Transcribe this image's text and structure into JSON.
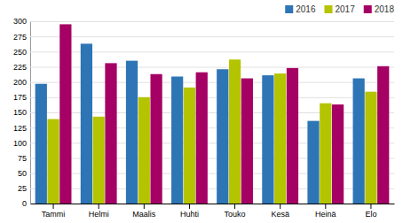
{
  "chart_data": {
    "type": "bar",
    "categories": [
      "Tammi",
      "Helmi",
      "Maalis",
      "Huhti",
      "Touko",
      "Kesä",
      "Heinä",
      "Elo"
    ],
    "series": [
      {
        "name": "2016",
        "color": "#2e75b6",
        "values": [
          197,
          263,
          235,
          209,
          221,
          211,
          136,
          206
        ]
      },
      {
        "name": "2017",
        "color": "#b5c400",
        "values": [
          139,
          143,
          175,
          191,
          237,
          214,
          165,
          184
        ]
      },
      {
        "name": "2018",
        "color": "#a50064",
        "values": [
          295,
          231,
          213,
          216,
          206,
          223,
          163,
          226
        ]
      }
    ],
    "ylim": [
      0,
      300
    ],
    "yticks": [
      0,
      25,
      50,
      75,
      100,
      125,
      150,
      175,
      200,
      225,
      250,
      275,
      300
    ],
    "grid": true,
    "legend": "upper right"
  }
}
